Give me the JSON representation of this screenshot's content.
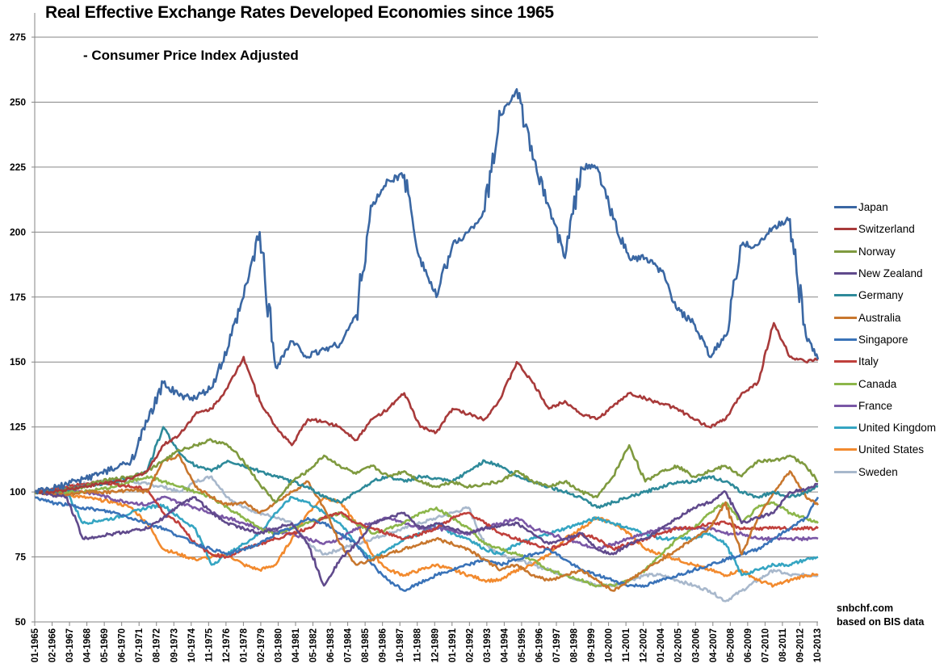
{
  "chart_data": {
    "type": "line",
    "title": "Real Effective Exchange Rates Developed Economies since 1965",
    "subtitle": "- Consumer  Price Index Adjusted",
    "xlabel": "",
    "ylabel": "",
    "ylim": [
      50,
      275
    ],
    "yticks": [
      50,
      75,
      100,
      125,
      150,
      175,
      200,
      225,
      250,
      275
    ],
    "grid": true,
    "legend_position": "right",
    "x_tick_labels": [
      "01-1965",
      "02-1966",
      "03-1967",
      "04-1968",
      "05-1969",
      "06-1970",
      "07-1971",
      "08-1972",
      "09-1973",
      "10-1974",
      "11-1975",
      "12-1976",
      "01-1978",
      "02-1979",
      "03-1980",
      "04-1981",
      "05-1982",
      "06-1983",
      "07-1984",
      "08-1985",
      "09-1986",
      "10-1987",
      "11-1988",
      "12-1989",
      "01-1991",
      "02-1992",
      "03-1993",
      "04-1994",
      "05-1995",
      "06-1996",
      "07-1997",
      "08-1998",
      "09-1999",
      "10-2000",
      "11-2001",
      "12-2002",
      "01-2004",
      "02-2005",
      "03-2006",
      "04-2007",
      "05-2008",
      "06-2009",
      "07-2010",
      "08-2011",
      "09-2012",
      "10-2013"
    ],
    "x": [
      1965,
      1966,
      1967,
      1968,
      1969,
      1970,
      1971,
      1972,
      1973,
      1974,
      1975,
      1976,
      1977,
      1978,
      1979,
      1980,
      1981,
      1982,
      1983,
      1984,
      1985,
      1986,
      1987,
      1988,
      1989,
      1990,
      1991,
      1992,
      1993,
      1994,
      1995,
      1996,
      1997,
      1998,
      1999,
      2000,
      2001,
      2002,
      2003,
      2004,
      2005,
      2006,
      2007,
      2008,
      2009,
      2010,
      2011,
      2012,
      2013,
      2013.75
    ],
    "series": [
      {
        "name": "Japan",
        "color": "#3a67a3",
        "values": [
          100,
          101,
          103,
          105,
          107,
          109,
          112,
          127,
          142,
          137,
          136,
          140,
          155,
          175,
          200,
          148,
          158,
          152,
          155,
          157,
          168,
          210,
          220,
          222,
          190,
          175,
          195,
          200,
          208,
          245,
          255,
          228,
          210,
          190,
          225,
          225,
          205,
          190,
          190,
          185,
          170,
          165,
          152,
          160,
          195,
          195,
          202,
          205,
          160,
          151
        ]
      },
      {
        "name": "Switzerland",
        "color": "#a83a3a",
        "values": [
          100,
          100,
          101,
          102,
          103,
          104,
          105,
          108,
          118,
          122,
          130,
          132,
          140,
          152,
          135,
          125,
          118,
          128,
          127,
          125,
          120,
          128,
          132,
          138,
          125,
          123,
          132,
          130,
          128,
          136,
          150,
          142,
          132,
          135,
          130,
          128,
          133,
          138,
          136,
          134,
          132,
          128,
          125,
          128,
          138,
          142,
          165,
          152,
          150,
          151
        ]
      },
      {
        "name": "Norway",
        "color": "#7f9a3f",
        "values": [
          100,
          100,
          101,
          102,
          104,
          105,
          106,
          108,
          112,
          116,
          118,
          120,
          118,
          112,
          103,
          96,
          104,
          108,
          114,
          110,
          107,
          110,
          106,
          108,
          104,
          102,
          104,
          102,
          103,
          104,
          108,
          104,
          102,
          104,
          100,
          98,
          106,
          118,
          104,
          108,
          110,
          106,
          108,
          110,
          106,
          112,
          112,
          114,
          110,
          104
        ]
      },
      {
        "name": "New Zealand",
        "color": "#604a8c",
        "values": [
          100,
          99,
          98,
          82,
          83,
          84,
          85,
          86,
          90,
          95,
          98,
          92,
          88,
          86,
          84,
          86,
          88,
          80,
          64,
          74,
          80,
          88,
          90,
          92,
          86,
          88,
          86,
          84,
          86,
          87,
          88,
          84,
          80,
          82,
          84,
          78,
          76,
          80,
          82,
          86,
          90,
          94,
          96,
          100,
          88,
          90,
          92,
          100,
          101,
          103
        ]
      },
      {
        "name": "Germany",
        "color": "#2e8a9a",
        "values": [
          100,
          100,
          101,
          102,
          103,
          104,
          106,
          108,
          125,
          115,
          110,
          108,
          112,
          110,
          108,
          106,
          104,
          102,
          98,
          96,
          100,
          104,
          106,
          104,
          106,
          105,
          104,
          108,
          112,
          110,
          106,
          104,
          102,
          100,
          98,
          94,
          96,
          98,
          100,
          102,
          104,
          104,
          106,
          104,
          100,
          98,
          100,
          98,
          100,
          102
        ]
      },
      {
        "name": "Australia",
        "color": "#c8772e",
        "values": [
          100,
          99,
          99,
          100,
          100,
          100,
          101,
          100,
          112,
          114,
          102,
          98,
          95,
          96,
          92,
          96,
          100,
          104,
          94,
          80,
          72,
          74,
          76,
          78,
          80,
          82,
          80,
          78,
          74,
          70,
          72,
          68,
          66,
          68,
          70,
          66,
          62,
          66,
          70,
          74,
          78,
          82,
          86,
          96,
          76,
          90,
          100,
          108,
          98,
          95
        ]
      },
      {
        "name": "Singapore",
        "color": "#3a73b8",
        "values": [
          98,
          96,
          95,
          94,
          93,
          92,
          90,
          88,
          86,
          83,
          80,
          78,
          76,
          78,
          80,
          84,
          86,
          90,
          88,
          84,
          80,
          72,
          66,
          62,
          65,
          68,
          70,
          72,
          74,
          72,
          74,
          76,
          78,
          74,
          70,
          68,
          66,
          64,
          64,
          66,
          68,
          70,
          72,
          74,
          76,
          78,
          82,
          86,
          90,
          98
        ]
      },
      {
        "name": "Italy",
        "color": "#c0403c",
        "values": [
          100,
          101,
          102,
          103,
          104,
          103,
          102,
          101,
          92,
          88,
          80,
          76,
          75,
          78,
          80,
          82,
          84,
          86,
          90,
          92,
          88,
          86,
          84,
          82,
          84,
          86,
          90,
          92,
          88,
          84,
          82,
          80,
          78,
          80,
          84,
          82,
          78,
          80,
          82,
          84,
          86,
          86,
          88,
          88,
          86,
          86,
          86,
          86,
          86,
          86
        ]
      },
      {
        "name": "Canada",
        "color": "#8cb64a",
        "values": [
          100,
          100,
          100,
          100,
          101,
          102,
          104,
          106,
          104,
          102,
          100,
          98,
          94,
          90,
          86,
          84,
          86,
          88,
          90,
          92,
          88,
          84,
          86,
          88,
          92,
          94,
          90,
          86,
          80,
          78,
          76,
          74,
          70,
          68,
          66,
          64,
          64,
          66,
          70,
          76,
          82,
          86,
          92,
          96,
          88,
          94,
          96,
          92,
          90,
          88
        ]
      },
      {
        "name": "France",
        "color": "#7a57a6",
        "values": [
          100,
          100,
          101,
          100,
          99,
          97,
          96,
          95,
          98,
          96,
          94,
          92,
          90,
          88,
          86,
          85,
          84,
          82,
          80,
          82,
          86,
          88,
          90,
          88,
          86,
          86,
          85,
          84,
          86,
          88,
          90,
          86,
          84,
          82,
          80,
          78,
          80,
          82,
          84,
          86,
          86,
          86,
          86,
          84,
          84,
          82,
          82,
          82,
          82,
          82
        ]
      },
      {
        "name": "United Kingdom",
        "color": "#35a5c2",
        "values": [
          100,
          100,
          100,
          88,
          89,
          90,
          92,
          94,
          95,
          90,
          86,
          72,
          76,
          80,
          84,
          92,
          98,
          96,
          92,
          88,
          80,
          74,
          78,
          82,
          84,
          88,
          84,
          82,
          78,
          76,
          80,
          82,
          84,
          86,
          88,
          90,
          88,
          86,
          84,
          82,
          82,
          82,
          84,
          80,
          68,
          70,
          72,
          72,
          74,
          75
        ]
      },
      {
        "name": "United States",
        "color": "#f28a2e",
        "values": [
          100,
          100,
          99,
          98,
          97,
          96,
          94,
          88,
          78,
          76,
          74,
          75,
          76,
          72,
          70,
          72,
          82,
          92,
          98,
          96,
          88,
          76,
          70,
          68,
          70,
          72,
          70,
          68,
          66,
          66,
          70,
          72,
          76,
          82,
          86,
          90,
          88,
          84,
          78,
          76,
          74,
          72,
          70,
          68,
          70,
          66,
          64,
          66,
          68,
          68
        ]
      },
      {
        "name": "Sweden",
        "color": "#a8b8cc",
        "values": [
          100,
          101,
          102,
          103,
          104,
          104,
          104,
          103,
          102,
          100,
          104,
          106,
          98,
          94,
          92,
          90,
          88,
          80,
          76,
          78,
          80,
          82,
          84,
          86,
          88,
          90,
          92,
          94,
          80,
          76,
          74,
          72,
          70,
          68,
          66,
          64,
          64,
          66,
          68,
          68,
          66,
          64,
          62,
          58,
          62,
          66,
          70,
          68,
          68,
          68
        ]
      }
    ]
  },
  "source_lines": [
    "snbchf.com",
    "based on BIS data"
  ]
}
